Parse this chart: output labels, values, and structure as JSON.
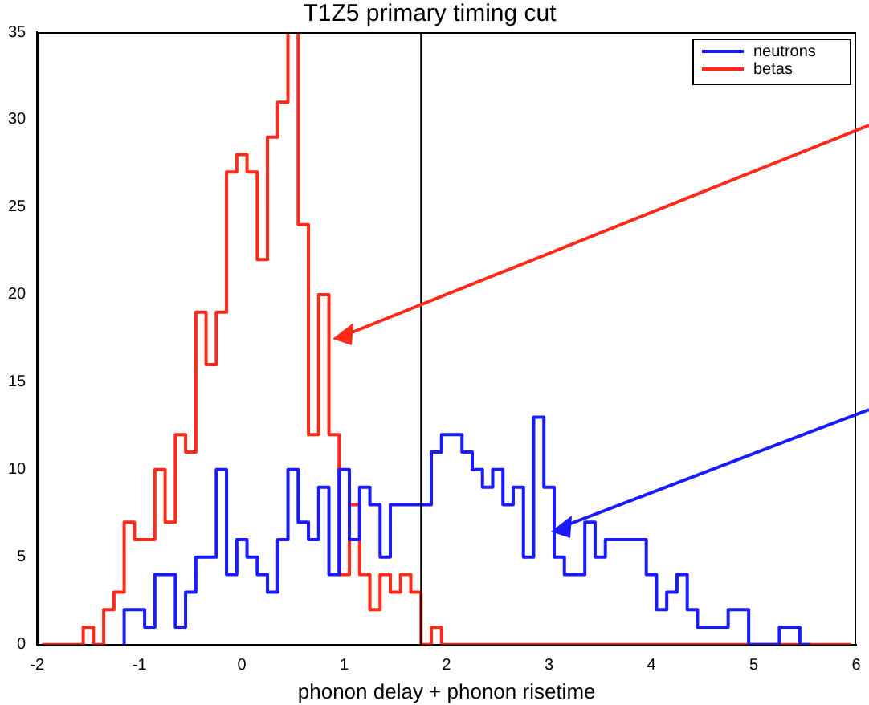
{
  "chart_data": {
    "type": "step",
    "title": "T1Z5 primary timing cut",
    "xlabel": "phonon delay + phonon risetime",
    "x": [
      -1.95,
      -1.85,
      -1.75,
      -1.65,
      -1.55,
      -1.45,
      -1.35,
      -1.25,
      -1.15,
      -1.05,
      -0.95,
      -0.85,
      -0.75,
      -0.65,
      -0.55,
      -0.45,
      -0.35,
      -0.25,
      -0.15,
      -0.05,
      0.05,
      0.15,
      0.25,
      0.35,
      0.45,
      0.55,
      0.65,
      0.75,
      0.85,
      0.95,
      1.05,
      1.15,
      1.25,
      1.35,
      1.45,
      1.55,
      1.65,
      1.75,
      1.85,
      1.95,
      2.05,
      2.15,
      2.25,
      2.35,
      2.45,
      2.55,
      2.65,
      2.75,
      2.85,
      2.95,
      3.05,
      3.15,
      3.25,
      3.35,
      3.45,
      3.55,
      3.65,
      3.75,
      3.85,
      3.95,
      4.05,
      4.15,
      4.25,
      4.35,
      4.45,
      4.55,
      4.65,
      4.75,
      4.85,
      4.95,
      5.05,
      5.15,
      5.25,
      5.35,
      5.45,
      5.55,
      5.65,
      5.75,
      5.85,
      5.95
    ],
    "series": [
      {
        "name": "neutrons",
        "color": "#1a1aff",
        "values": [
          null,
          null,
          null,
          null,
          null,
          null,
          null,
          null,
          0,
          2,
          2,
          1,
          4,
          4,
          1,
          3,
          5,
          5,
          10,
          4,
          6,
          5,
          4,
          3,
          6,
          10,
          7,
          6,
          9,
          4,
          10,
          6,
          9,
          8,
          5,
          8,
          8,
          8,
          8,
          11,
          12,
          12,
          11,
          10,
          9,
          10,
          8,
          9,
          5,
          13,
          9,
          5,
          4,
          4,
          7,
          5,
          6,
          6,
          6,
          6,
          4,
          2,
          3,
          4,
          2,
          1,
          1,
          1,
          2,
          2,
          0,
          0,
          0,
          1,
          1,
          0,
          null,
          null,
          null,
          null
        ]
      },
      {
        "name": "betas",
        "color": "#ff2a1a",
        "values": [
          0,
          0,
          0,
          0,
          0,
          1,
          0,
          2,
          3,
          7,
          6,
          6,
          10,
          7,
          12,
          11,
          19,
          16,
          19,
          27,
          28,
          27,
          22,
          29,
          31,
          35,
          24,
          12,
          20,
          12,
          4,
          8,
          4,
          2,
          4,
          3,
          4,
          3,
          0,
          1,
          0,
          0,
          0,
          0,
          0,
          0,
          0,
          0,
          0,
          0,
          0,
          0,
          0,
          0,
          0,
          0,
          0,
          0,
          0,
          0,
          0,
          0,
          0,
          0,
          0,
          0,
          0,
          0,
          0,
          0,
          0,
          0,
          0,
          0,
          0,
          0,
          0,
          0,
          0,
          0
        ]
      }
    ],
    "xlim": [
      -2,
      6
    ],
    "xticks": [
      -2,
      -1,
      0,
      1,
      2,
      3,
      4,
      5,
      6
    ],
    "ylim": [
      0,
      35
    ],
    "yticks": [
      0,
      5,
      10,
      15,
      20,
      25,
      30,
      35
    ],
    "ref_lines": [
      {
        "axis": "x",
        "value": 1.75,
        "color": "#000000"
      }
    ],
    "legend": "top right",
    "grid": false
  }
}
